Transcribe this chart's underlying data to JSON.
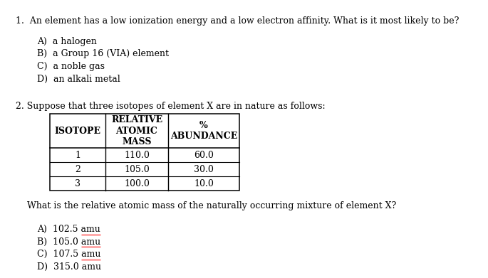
{
  "bg_color": "#ffffff",
  "q1_text": "1.  An element has a low ionization energy and a low electron affinity. What is it most likely to be?",
  "q1_options": [
    "A)  a halogen",
    "B)  a Group 16 (VIA) element",
    "C)  a noble gas",
    "D)  an alkali metal"
  ],
  "q2_intro": "2. Suppose that three isotopes of element X are in nature as follows:",
  "table_col1_header": "ISOTOPE",
  "table_col2_header_line1": "RELATIVE",
  "table_col2_header_line2": "ATOMIC",
  "table_col2_header_line3": "MASS",
  "table_col3_header_line1": "%",
  "table_col3_header_line2": "ABUNDANCE",
  "table_rows": [
    [
      "1",
      "110.0",
      "60.0"
    ],
    [
      "2",
      "105.0",
      "30.0"
    ],
    [
      "3",
      "100.0",
      "10.0"
    ]
  ],
  "q2_question": "    What is the relative atomic mass of the naturally occurring mixture of element X?",
  "q2_options_before": [
    "A)  102.5 ",
    "B)  105.0 ",
    "C)  107.5 ",
    "D)  315.0 "
  ],
  "amu_text": "amu",
  "font_size_main": 9.0,
  "font_size_table_header": 9.0,
  "font_size_table_data": 9.0,
  "text_color": "#000000",
  "underline_color": "#ff9999"
}
